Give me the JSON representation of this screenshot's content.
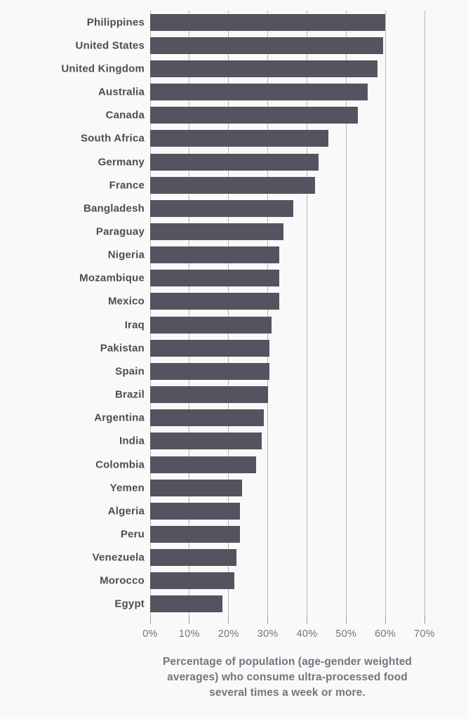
{
  "chart_data": {
    "type": "bar",
    "orientation": "horizontal",
    "title": "",
    "categories": [
      "Philippines",
      "United States",
      "United Kingdom",
      "Australia",
      "Canada",
      "South Africa",
      "Germany",
      "France",
      "Bangladesh",
      "Paraguay",
      "Nigeria",
      "Mozambique",
      "Mexico",
      "Iraq",
      "Pakistan",
      "Spain",
      "Brazil",
      "Argentina",
      "India",
      "Colombia",
      "Yemen",
      "Algeria",
      "Peru",
      "Venezuela",
      "Morocco",
      "Egypt"
    ],
    "values": [
      60,
      59.5,
      58,
      55.5,
      53,
      45.5,
      43,
      42,
      36.5,
      34,
      33,
      33,
      33,
      31,
      30.5,
      30.5,
      30,
      29,
      28.5,
      27,
      23.5,
      23,
      23,
      22,
      21.5,
      18.5
    ],
    "unit": "%",
    "xlim": [
      0,
      70
    ],
    "x_tick_labels": [
      "0%",
      "10%",
      "20%",
      "30%",
      "40%",
      "50%",
      "60%",
      "70%"
    ],
    "grid": "vertical-gridlines-behind-bars",
    "legend": "none",
    "caption": "Percentage of population (age-gender weighted averages) who consume ultra-processed food several times a week or more.",
    "caption_lines": [
      "Percentage of population (age-gender weighted",
      "averages) who consume ultra-processed food",
      "several times a week or more."
    ]
  },
  "colors": {
    "background": "#f9f9f9",
    "bar": "#56525f",
    "gridline": "#b7b7bb",
    "tick_mark": "#97979d",
    "category_label": "#4c4c54",
    "tick_label": "#74747c",
    "caption": "#757480"
  }
}
